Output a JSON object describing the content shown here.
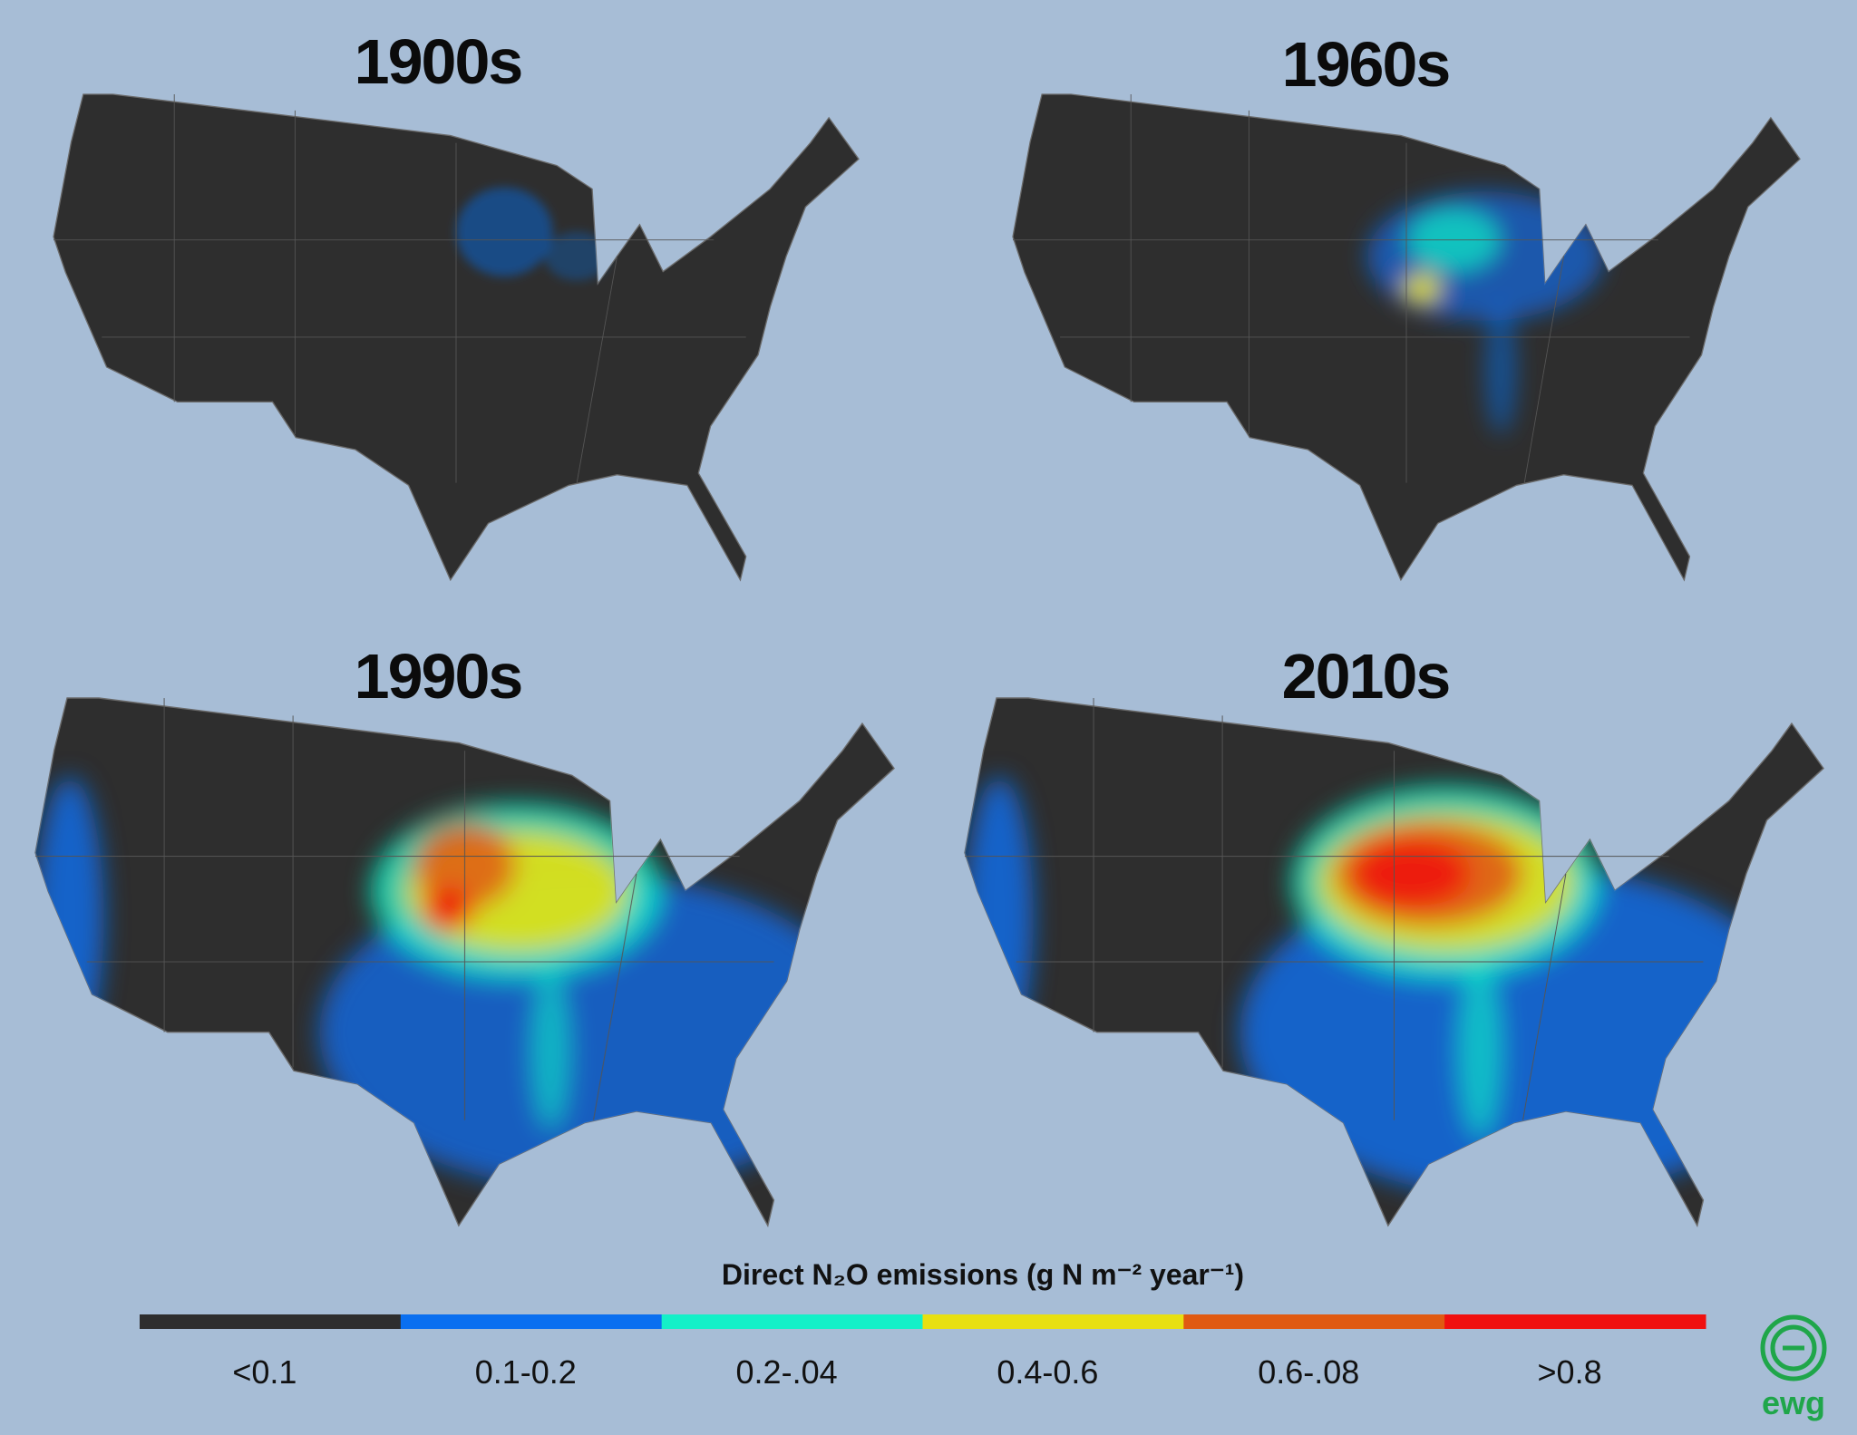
{
  "panels": [
    {
      "title": "1900s"
    },
    {
      "title": "1960s"
    },
    {
      "title": "1990s"
    },
    {
      "title": "2010s"
    }
  ],
  "legend": {
    "title": "Direct N₂O emissions (g N m⁻² year⁻¹)",
    "classes": [
      {
        "label": "<0.1",
        "color": "#2e2e2e"
      },
      {
        "label": "0.1-0.2",
        "color": "#0a6ff0"
      },
      {
        "label": "0.2-.04",
        "color": "#14f0c8"
      },
      {
        "label": "0.4-0.6",
        "color": "#e8e012"
      },
      {
        "label": "0.6-.08",
        "color": "#e05a12"
      },
      {
        "label": ">0.8",
        "color": "#f01010"
      }
    ]
  },
  "logo": {
    "text": "ewg"
  }
}
